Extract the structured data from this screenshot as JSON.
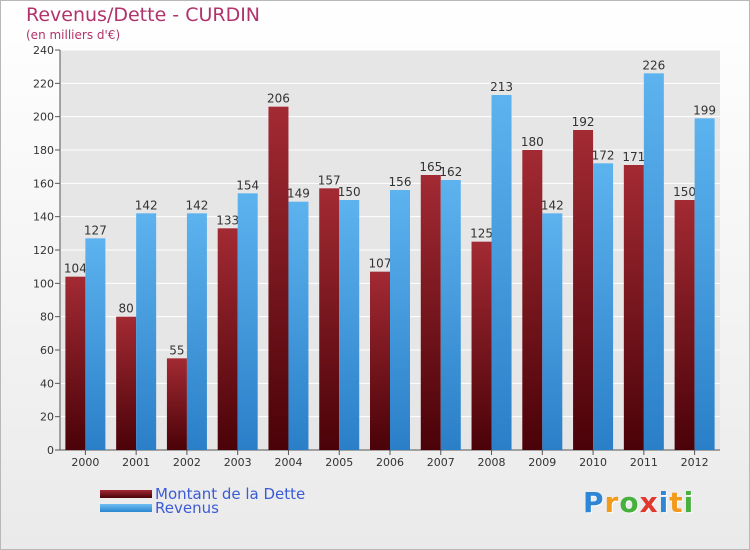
{
  "chart_data": {
    "type": "bar",
    "title": "Revenus/Dette - CURDIN",
    "subtitle": "(en milliers d'€)",
    "categories": [
      "2000",
      "2001",
      "2002",
      "2003",
      "2004",
      "2005",
      "2006",
      "2007",
      "2008",
      "2009",
      "2010",
      "2011",
      "2012"
    ],
    "series": [
      {
        "name": "Montant de la Dette",
        "color": "#6e0f16",
        "values": [
          104,
          80,
          55,
          133,
          206,
          157,
          107,
          165,
          125,
          180,
          192,
          171,
          150
        ]
      },
      {
        "name": "Revenus",
        "color": "#3f9de0",
        "values": [
          127,
          142,
          142,
          154,
          149,
          150,
          156,
          162,
          213,
          142,
          172,
          226,
          199
        ]
      }
    ],
    "ylim": [
      0,
      240
    ],
    "yticks": [
      0,
      20,
      40,
      60,
      80,
      100,
      120,
      140,
      160,
      180,
      200,
      220,
      240
    ],
    "grid": true,
    "legend_position": "bottom-left"
  },
  "logo": {
    "letters": [
      "P",
      "r",
      "o",
      "x",
      "i",
      "t",
      "i"
    ],
    "colors": [
      "#2e86d6",
      "#f29a1c",
      "#46b13d",
      "#e03a2e",
      "#2e86d6",
      "#f29a1c",
      "#46b13d"
    ]
  }
}
